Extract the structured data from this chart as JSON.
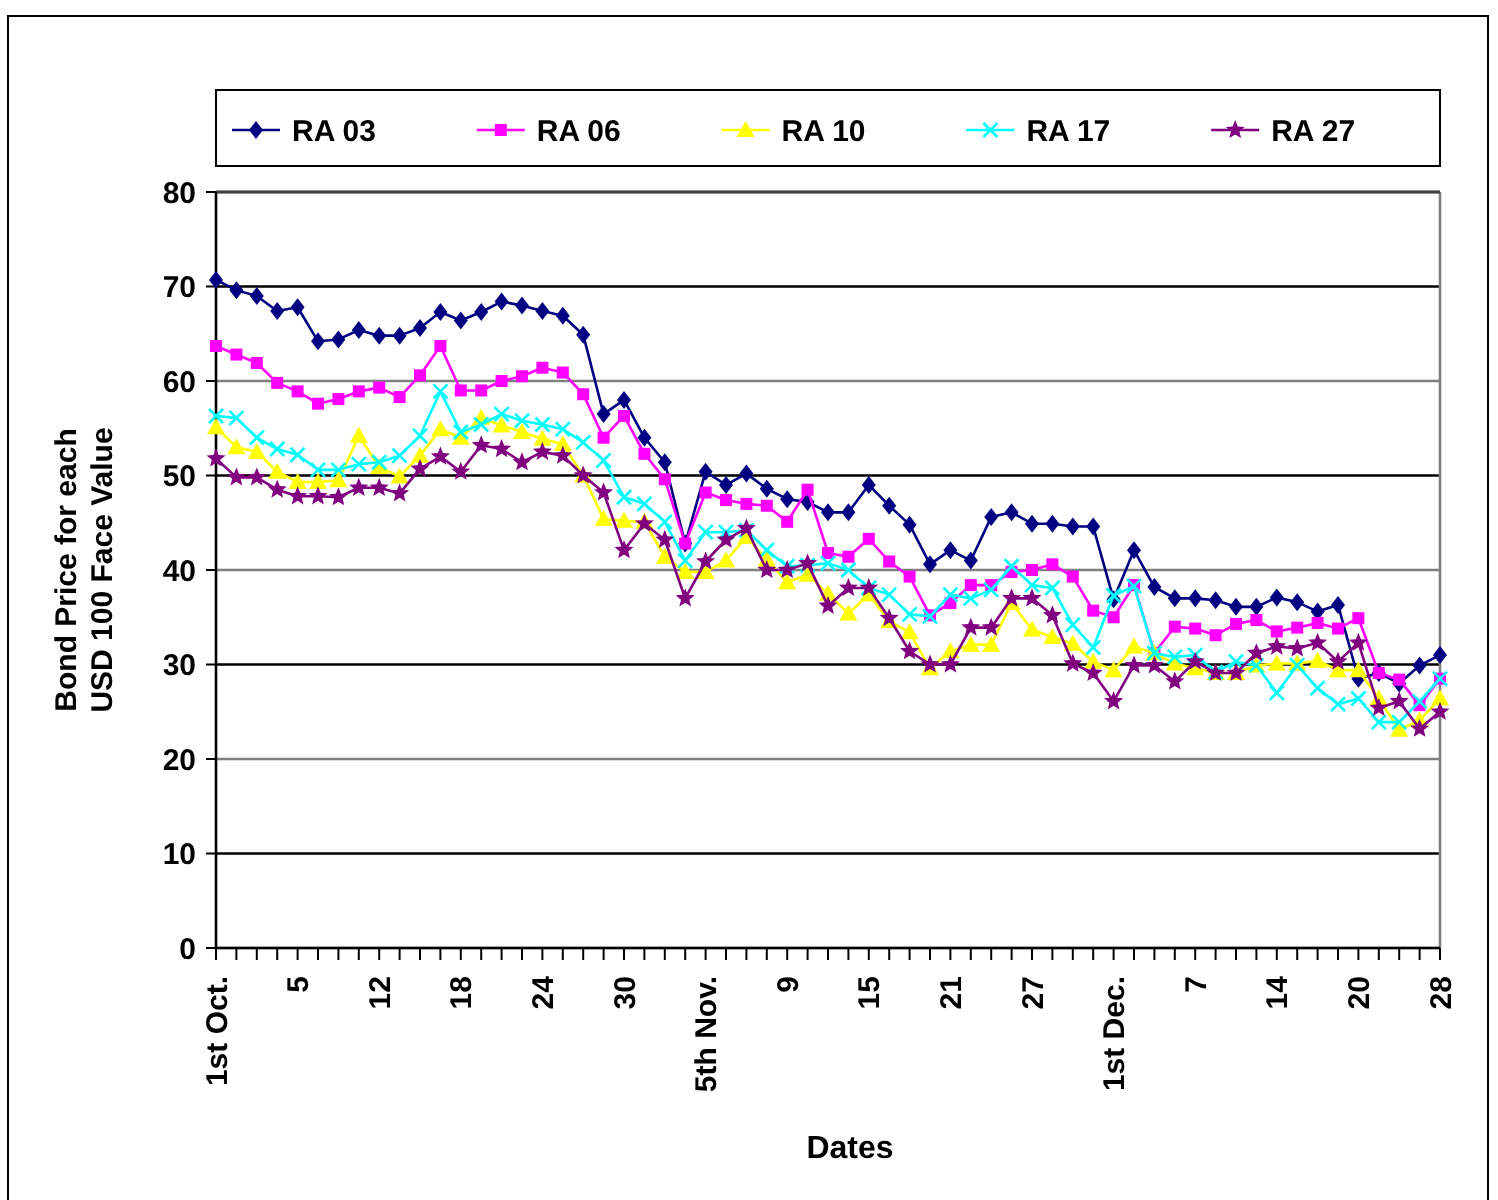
{
  "chart_data": {
    "type": "line",
    "xlabel": "Dates",
    "ylabel": "Bond Price for each USD 100 Face Value",
    "categories": [
      "1st Oct.",
      null,
      null,
      null,
      "5",
      null,
      null,
      null,
      "12",
      null,
      null,
      null,
      "18",
      null,
      null,
      null,
      "24",
      null,
      null,
      null,
      "30",
      null,
      null,
      null,
      "5th Nov.",
      null,
      null,
      null,
      "9",
      null,
      null,
      null,
      "15",
      null,
      null,
      null,
      "21",
      null,
      null,
      null,
      "27",
      null,
      null,
      null,
      "1st Dec.",
      null,
      null,
      null,
      "7",
      null,
      null,
      null,
      "14",
      null,
      null,
      null,
      "20",
      null,
      null,
      null,
      "28"
    ],
    "ylim": [
      0,
      80
    ],
    "yticks": [
      0,
      10,
      20,
      30,
      40,
      50,
      60,
      70,
      80
    ],
    "grid": "y",
    "legend": "top",
    "series": [
      {
        "name": "RA 03",
        "color": "#000080",
        "marker": "diamond",
        "values": [
          70.7,
          69.6,
          69,
          67.4,
          67.8,
          64.2,
          64.4,
          65.4,
          64.8,
          64.8,
          65.6,
          67.3,
          66.4,
          67.3,
          68.4,
          68,
          67.4,
          66.9,
          64.9,
          56.5,
          58,
          54,
          51.4,
          42.8,
          50.4,
          49,
          50.2,
          48.6,
          47.5,
          47.2,
          46.1,
          46.1,
          49,
          46.8,
          44.8,
          40.6,
          42.1,
          41,
          45.6,
          46.1,
          44.9,
          44.9,
          44.6,
          44.6,
          36.9,
          42.1,
          38.2,
          37,
          37,
          36.8,
          36.1,
          36.1,
          37.1,
          36.6,
          35.6,
          36.3,
          28.5,
          29.1,
          28,
          29.9,
          31
        ]
      },
      {
        "name": "RA 06",
        "color": "#ff00ff",
        "marker": "square",
        "values": [
          63.7,
          62.8,
          61.9,
          59.8,
          58.9,
          57.6,
          58.1,
          58.9,
          59.3,
          58.3,
          60.6,
          63.7,
          59,
          59,
          60,
          60.5,
          61.4,
          60.9,
          58.6,
          54,
          56.3,
          52.3,
          49.6,
          42.8,
          48.2,
          47.4,
          47,
          46.8,
          45.1,
          48.5,
          41.8,
          41.4,
          43.3,
          40.9,
          39.3,
          35.2,
          36.5,
          38.4,
          38.4,
          39.8,
          40,
          40.6,
          39.3,
          35.7,
          35,
          38.4,
          31.2,
          34,
          33.8,
          33.1,
          34.3,
          34.7,
          33.5,
          33.9,
          34.4,
          33.8,
          34.9,
          29.1,
          28.4,
          25.7,
          28.5
        ]
      },
      {
        "name": "RA 10",
        "color": "#ffff00",
        "marker": "triangle",
        "values": [
          55.1,
          53,
          52.5,
          50.4,
          49.3,
          49.3,
          49.5,
          54.2,
          50.9,
          49.9,
          52.1,
          54.9,
          54,
          56.1,
          55.3,
          54.6,
          53.9,
          53.3,
          50,
          45.4,
          45.2,
          45.1,
          41.4,
          39.8,
          39.8,
          41,
          43.5,
          41.1,
          38.7,
          39.5,
          37.5,
          35.4,
          37.4,
          34.6,
          33.4,
          29.6,
          31.4,
          32.1,
          32.1,
          36.5,
          33.7,
          32.9,
          32.2,
          30.3,
          29.4,
          31.9,
          31.2,
          30.1,
          29.6,
          29.1,
          29.1,
          29.9,
          30.1,
          30.1,
          30.4,
          29.4,
          29.4,
          26.4,
          23.1,
          24.1,
          26.4
        ]
      },
      {
        "name": "RA 17",
        "color": "#00ffff",
        "marker": "cross",
        "values": [
          56.3,
          56.1,
          54,
          52.8,
          52.2,
          50.6,
          50.6,
          51.2,
          51.4,
          52.1,
          54.2,
          58.9,
          54.6,
          55.4,
          56.5,
          55.8,
          55.4,
          54.9,
          53.5,
          51.6,
          47.7,
          47,
          45.1,
          41,
          44,
          44,
          44.2,
          42.1,
          40.4,
          40.5,
          40.7,
          40,
          38.1,
          37.4,
          35.3,
          35.1,
          37.4,
          37,
          37.9,
          40.4,
          38.4,
          38.1,
          34.2,
          31.8,
          37.3,
          38.3,
          31.2,
          30.8,
          31,
          29.2,
          30.3,
          29.9,
          27,
          29.9,
          27.5,
          25.8,
          26.4,
          23.9,
          23.9,
          26.1,
          28.5
        ]
      },
      {
        "name": "RA 27",
        "color": "#800080",
        "marker": "star",
        "values": [
          51.8,
          49.8,
          49.8,
          48.5,
          47.8,
          47.8,
          47.7,
          48.7,
          48.7,
          48.1,
          50.7,
          52,
          50.4,
          53.2,
          52.8,
          51.4,
          52.5,
          52.1,
          50,
          48.2,
          42.1,
          44.9,
          43.2,
          37,
          40.9,
          43.2,
          44.4,
          40,
          40,
          40.7,
          36.2,
          38.1,
          38.1,
          34.9,
          31.4,
          30,
          30,
          33.9,
          33.9,
          37,
          37,
          35.2,
          30.1,
          29.1,
          26.1,
          29.9,
          29.9,
          28.2,
          30.3,
          29.1,
          29.1,
          31.2,
          31.9,
          31.7,
          32.3,
          30.3,
          32.3,
          25.4,
          26.1,
          23.2,
          25
        ]
      }
    ]
  }
}
